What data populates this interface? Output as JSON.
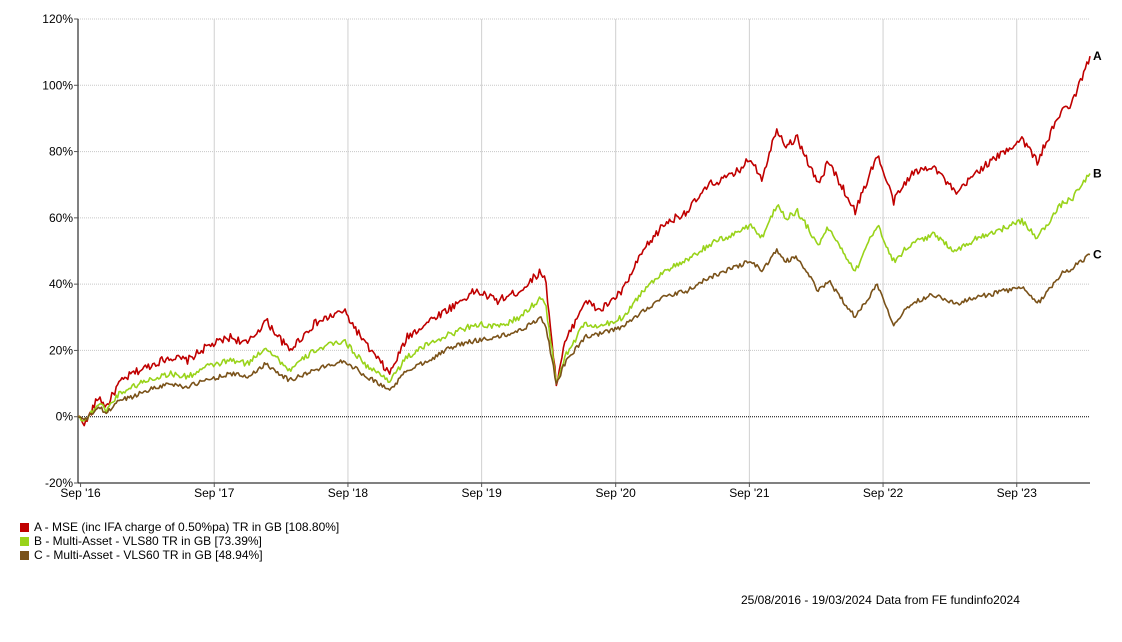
{
  "chart_data": {
    "type": "line",
    "title": "",
    "xlabel": "",
    "ylabel": "",
    "x_range": [
      "2016-08-25",
      "2024-03-19"
    ],
    "ylim": [
      -20,
      120
    ],
    "yticks": [
      -20,
      0,
      20,
      40,
      60,
      80,
      100,
      120
    ],
    "ytick_labels": [
      "-20%",
      "0%",
      "20%",
      "40%",
      "60%",
      "80%",
      "100%",
      "120%"
    ],
    "xticks": [
      "2016-09-01",
      "2017-09-01",
      "2018-09-01",
      "2019-09-01",
      "2020-09-01",
      "2021-09-01",
      "2022-09-01",
      "2023-09-01"
    ],
    "xtick_labels": [
      "Sep '16",
      "Sep '17",
      "Sep '18",
      "Sep '19",
      "Sep '20",
      "Sep '21",
      "Sep '22",
      "Sep '23"
    ],
    "grid": true,
    "legend_position": "bottom-left",
    "series": [
      {
        "label": "A",
        "legend": "A - MSE (inc IFA charge of 0.50%pa) TR in GB [108.80%]",
        "color": "#c00000",
        "points": [
          [
            "2016-08-25",
            0
          ],
          [
            "2016-09-15",
            -2
          ],
          [
            "2016-10-20",
            6
          ],
          [
            "2016-11-10",
            3
          ],
          [
            "2016-12-15",
            10
          ],
          [
            "2017-01-20",
            13
          ],
          [
            "2017-03-01",
            15
          ],
          [
            "2017-05-01",
            18
          ],
          [
            "2017-06-20",
            17
          ],
          [
            "2017-08-10",
            21
          ],
          [
            "2017-10-15",
            24
          ],
          [
            "2017-12-01",
            22
          ],
          [
            "2018-01-20",
            29
          ],
          [
            "2018-03-25",
            20
          ],
          [
            "2018-06-01",
            28
          ],
          [
            "2018-08-20",
            32
          ],
          [
            "2018-10-25",
            21
          ],
          [
            "2018-12-24",
            13
          ],
          [
            "2019-02-10",
            24
          ],
          [
            "2019-04-25",
            30
          ],
          [
            "2019-06-10",
            33
          ],
          [
            "2019-08-15",
            38
          ],
          [
            "2019-10-15",
            35
          ],
          [
            "2019-12-15",
            38
          ],
          [
            "2020-02-10",
            44
          ],
          [
            "2020-02-24",
            40
          ],
          [
            "2020-03-23",
            10
          ],
          [
            "2020-04-15",
            22
          ],
          [
            "2020-06-08",
            35
          ],
          [
            "2020-07-20",
            32
          ],
          [
            "2020-09-20",
            38
          ],
          [
            "2020-11-15",
            50
          ],
          [
            "2021-01-10",
            58
          ],
          [
            "2021-03-15",
            62
          ],
          [
            "2021-05-15",
            70
          ],
          [
            "2021-07-20",
            73
          ],
          [
            "2021-09-05",
            78
          ],
          [
            "2021-10-05",
            72
          ],
          [
            "2021-11-15",
            87
          ],
          [
            "2021-12-10",
            82
          ],
          [
            "2022-01-10",
            84
          ],
          [
            "2022-03-08",
            70
          ],
          [
            "2022-04-05",
            77
          ],
          [
            "2022-06-17",
            62
          ],
          [
            "2022-08-16",
            79
          ],
          [
            "2022-09-30",
            65
          ],
          [
            "2022-11-15",
            73
          ],
          [
            "2023-01-15",
            76
          ],
          [
            "2023-03-20",
            67
          ],
          [
            "2023-05-15",
            74
          ],
          [
            "2023-07-31",
            80
          ],
          [
            "2023-09-15",
            84
          ],
          [
            "2023-10-27",
            77
          ],
          [
            "2023-12-31",
            92
          ],
          [
            "2024-02-01",
            95
          ],
          [
            "2024-03-19",
            108.8
          ]
        ]
      },
      {
        "label": "B",
        "legend": "B - Multi-Asset - VLS80 TR in GB [73.39%]",
        "color": "#99d31a",
        "points": [
          [
            "2016-08-25",
            0
          ],
          [
            "2016-09-15",
            -1
          ],
          [
            "2016-10-20",
            4
          ],
          [
            "2016-11-10",
            2
          ],
          [
            "2016-12-15",
            7
          ],
          [
            "2017-01-20",
            9
          ],
          [
            "2017-03-01",
            11
          ],
          [
            "2017-05-01",
            13
          ],
          [
            "2017-06-20",
            12
          ],
          [
            "2017-08-10",
            15
          ],
          [
            "2017-10-15",
            17
          ],
          [
            "2017-12-01",
            16
          ],
          [
            "2018-01-20",
            21
          ],
          [
            "2018-03-25",
            14
          ],
          [
            "2018-06-01",
            20
          ],
          [
            "2018-08-20",
            23
          ],
          [
            "2018-10-25",
            15
          ],
          [
            "2018-12-24",
            11
          ],
          [
            "2019-02-10",
            18
          ],
          [
            "2019-04-25",
            23
          ],
          [
            "2019-06-10",
            25
          ],
          [
            "2019-08-15",
            28
          ],
          [
            "2019-10-15",
            27
          ],
          [
            "2019-12-15",
            30
          ],
          [
            "2020-02-10",
            36
          ],
          [
            "2020-02-24",
            33
          ],
          [
            "2020-03-23",
            10
          ],
          [
            "2020-04-15",
            18
          ],
          [
            "2020-06-08",
            28
          ],
          [
            "2020-07-20",
            27
          ],
          [
            "2020-09-20",
            30
          ],
          [
            "2020-11-15",
            38
          ],
          [
            "2021-01-10",
            44
          ],
          [
            "2021-03-15",
            47
          ],
          [
            "2021-05-15",
            52
          ],
          [
            "2021-07-20",
            55
          ],
          [
            "2021-09-05",
            58
          ],
          [
            "2021-10-05",
            54
          ],
          [
            "2021-11-15",
            64
          ],
          [
            "2021-12-10",
            60
          ],
          [
            "2022-01-10",
            62
          ],
          [
            "2022-03-08",
            52
          ],
          [
            "2022-04-05",
            57
          ],
          [
            "2022-06-17",
            44
          ],
          [
            "2022-08-16",
            58
          ],
          [
            "2022-09-30",
            47
          ],
          [
            "2022-11-15",
            52
          ],
          [
            "2023-01-15",
            55
          ],
          [
            "2023-03-20",
            50
          ],
          [
            "2023-05-15",
            54
          ],
          [
            "2023-07-31",
            57
          ],
          [
            "2023-09-15",
            59
          ],
          [
            "2023-10-27",
            54
          ],
          [
            "2023-12-31",
            64
          ],
          [
            "2024-02-01",
            66
          ],
          [
            "2024-03-19",
            73.39
          ]
        ]
      },
      {
        "label": "C",
        "legend": "C - Multi-Asset - VLS60 TR in GB [48.94%]",
        "color": "#7a5219",
        "points": [
          [
            "2016-08-25",
            0
          ],
          [
            "2016-09-15",
            -1
          ],
          [
            "2016-10-20",
            3
          ],
          [
            "2016-11-10",
            1
          ],
          [
            "2016-12-15",
            5
          ],
          [
            "2017-01-20",
            6
          ],
          [
            "2017-03-01",
            8
          ],
          [
            "2017-05-01",
            10
          ],
          [
            "2017-06-20",
            9
          ],
          [
            "2017-08-10",
            11
          ],
          [
            "2017-10-15",
            13
          ],
          [
            "2017-12-01",
            12
          ],
          [
            "2018-01-20",
            16
          ],
          [
            "2018-03-25",
            11
          ],
          [
            "2018-06-01",
            14
          ],
          [
            "2018-08-20",
            17
          ],
          [
            "2018-10-25",
            12
          ],
          [
            "2018-12-24",
            8
          ],
          [
            "2019-02-10",
            14
          ],
          [
            "2019-04-25",
            18
          ],
          [
            "2019-06-10",
            21
          ],
          [
            "2019-08-15",
            23
          ],
          [
            "2019-10-15",
            24
          ],
          [
            "2019-12-15",
            26
          ],
          [
            "2020-02-10",
            30
          ],
          [
            "2020-02-24",
            27
          ],
          [
            "2020-03-23",
            10
          ],
          [
            "2020-04-15",
            16
          ],
          [
            "2020-06-08",
            24
          ],
          [
            "2020-07-20",
            25
          ],
          [
            "2020-09-20",
            27
          ],
          [
            "2020-11-15",
            32
          ],
          [
            "2021-01-10",
            36
          ],
          [
            "2021-03-15",
            38
          ],
          [
            "2021-05-15",
            42
          ],
          [
            "2021-07-20",
            45
          ],
          [
            "2021-09-05",
            47
          ],
          [
            "2021-10-05",
            44
          ],
          [
            "2021-11-15",
            50
          ],
          [
            "2021-12-10",
            47
          ],
          [
            "2022-01-10",
            48
          ],
          [
            "2022-03-08",
            38
          ],
          [
            "2022-04-05",
            41
          ],
          [
            "2022-06-17",
            30
          ],
          [
            "2022-08-16",
            40
          ],
          [
            "2022-09-30",
            28
          ],
          [
            "2022-11-15",
            34
          ],
          [
            "2023-01-15",
            37
          ],
          [
            "2023-03-20",
            34
          ],
          [
            "2023-05-15",
            36
          ],
          [
            "2023-07-31",
            38
          ],
          [
            "2023-09-15",
            39
          ],
          [
            "2023-10-27",
            34
          ],
          [
            "2023-12-31",
            43
          ],
          [
            "2024-02-01",
            45
          ],
          [
            "2024-03-19",
            48.94
          ]
        ]
      }
    ]
  },
  "footer": {
    "date_range": "25/08/2016 - 19/03/2024",
    "source": "Data from FE fundinfo2024"
  }
}
